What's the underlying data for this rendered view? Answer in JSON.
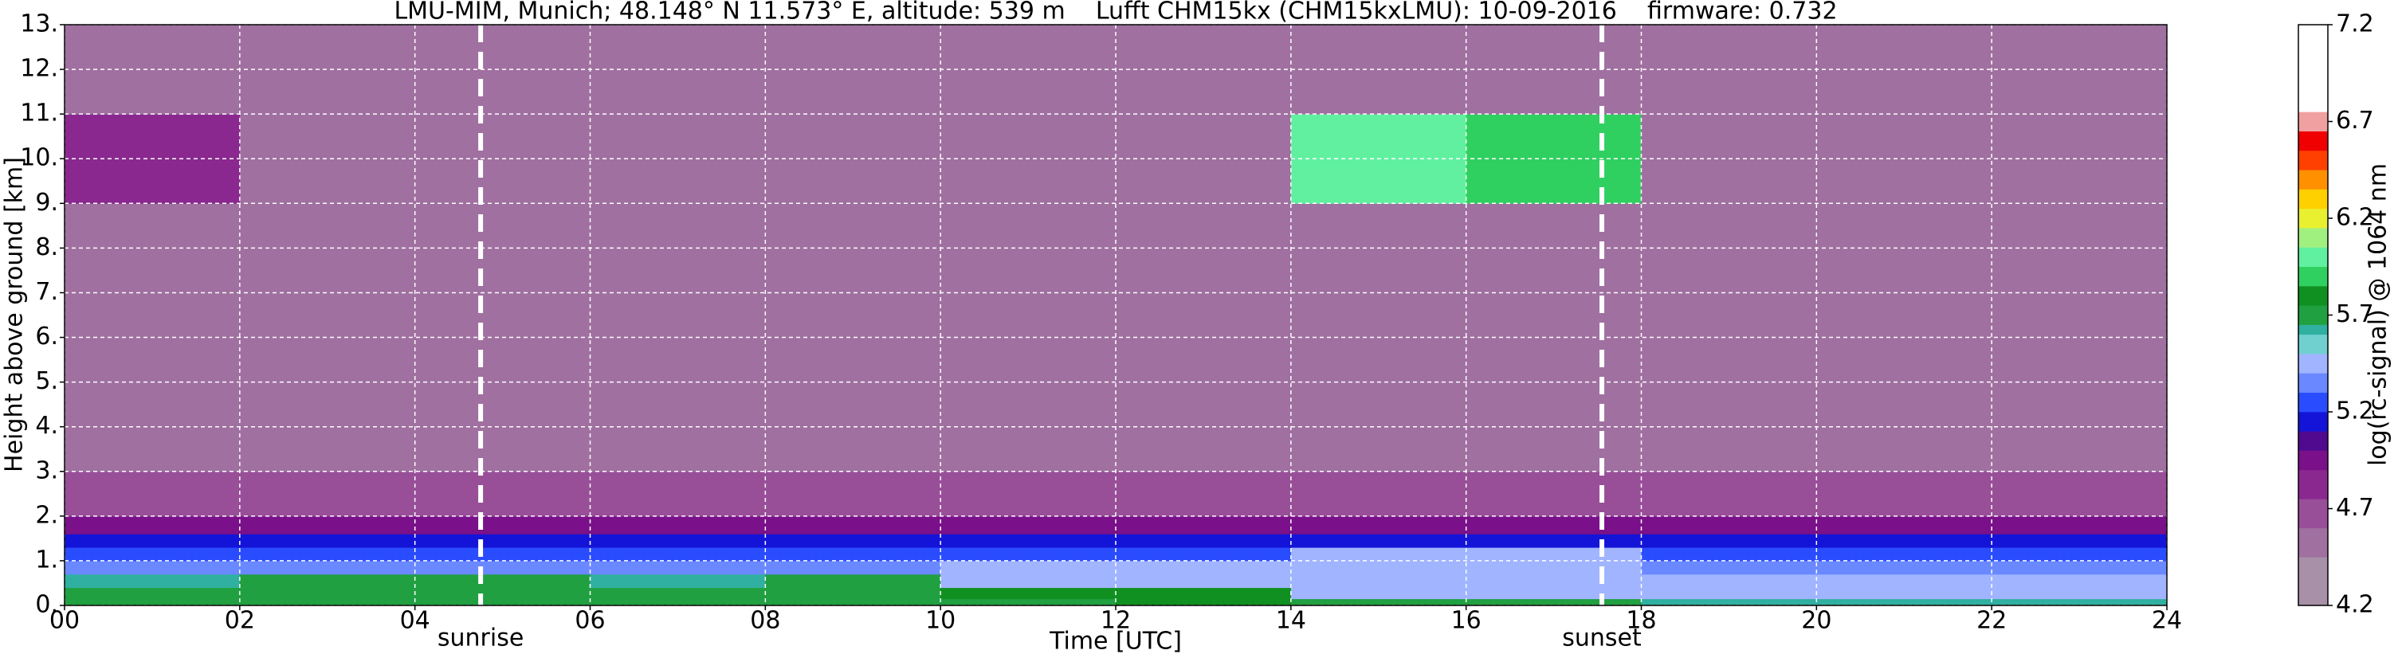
{
  "chart_data": {
    "type": "heatmap",
    "title": "LMU-MIM, Munich; 48.148° N 11.573° E, altitude: 539 m    Lufft CHM15kx (CHM15kxLMU): 10-09-2016    firmware: 0.732",
    "xlabel": "Time [UTC]",
    "ylabel": "Height above ground [km]",
    "colorbar_label": "log(rc-signal) @ 1064 nm",
    "xlim": [
      0,
      24
    ],
    "xticks": [
      {
        "value": 0,
        "label": "00"
      },
      {
        "value": 2,
        "label": "02"
      },
      {
        "value": 4,
        "label": "04"
      },
      {
        "value": 6,
        "label": "06"
      },
      {
        "value": 8,
        "label": "08"
      },
      10,
      12,
      14,
      16,
      18,
      20,
      22,
      24
    ],
    "ylim": [
      0,
      13
    ],
    "yticks": [
      {
        "value": 0,
        "label": "0."
      },
      {
        "value": 1,
        "label": "1."
      },
      {
        "value": 2,
        "label": "2."
      },
      {
        "value": 3,
        "label": "3."
      },
      {
        "value": 4,
        "label": "4."
      },
      {
        "value": 5,
        "label": "5."
      },
      {
        "value": 6,
        "label": "6."
      },
      {
        "value": 7,
        "label": "7."
      },
      {
        "value": 8,
        "label": "8."
      },
      {
        "value": 9,
        "label": "9."
      },
      {
        "value": 10,
        "label": "10."
      },
      {
        "value": 11,
        "label": "11."
      },
      {
        "value": 12,
        "label": "12."
      },
      {
        "value": 13,
        "label": "13."
      }
    ],
    "zlim": [
      4.2,
      7.2
    ],
    "zticks": [
      4.2,
      4.7,
      5.2,
      5.7,
      6.2,
      6.7,
      7.2
    ],
    "grid": true,
    "colormap": {
      "levels": [
        4.2,
        4.45,
        4.6,
        4.75,
        4.9,
        5.0,
        5.1,
        5.2,
        5.3,
        5.4,
        5.5,
        5.6,
        5.65,
        5.75,
        5.85,
        5.95,
        6.05,
        6.15,
        6.25,
        6.35,
        6.45,
        6.55,
        6.65,
        6.75,
        7.2
      ],
      "colors": [
        "#a890a8",
        "#a070a0",
        "#984f98",
        "#8a2890",
        "#7a108a",
        "#500a90",
        "#1414d8",
        "#2a4cff",
        "#6a88ff",
        "#a0b4ff",
        "#70d0d0",
        "#30b0a0",
        "#20a040",
        "#109020",
        "#30d060",
        "#60f0a0",
        "#a0f080",
        "#e8f030",
        "#ffd000",
        "#ff9000",
        "#ff4000",
        "#f00000",
        "#f0a0a0",
        "#ffffff"
      ]
    },
    "x_edges": [
      0,
      2,
      4,
      6,
      8,
      10,
      12,
      14,
      16,
      18,
      20,
      22,
      24
    ],
    "y_edges": [
      0,
      0.15,
      0.4,
      0.7,
      1.0,
      1.3,
      1.6,
      2.0,
      3.0,
      9.0,
      11.0,
      13.0
    ],
    "z": [
      [
        5.7,
        5.7,
        5.7,
        5.7,
        5.7,
        5.7,
        5.75,
        5.7,
        5.7,
        5.6,
        5.6,
        5.6
      ],
      [
        5.7,
        5.7,
        5.65,
        5.65,
        5.65,
        5.75,
        5.75,
        5.45,
        5.45,
        5.4,
        5.4,
        5.4
      ],
      [
        5.6,
        5.7,
        5.7,
        5.6,
        5.7,
        5.45,
        5.45,
        5.45,
        5.45,
        5.45,
        5.45,
        5.45
      ],
      [
        5.35,
        5.35,
        5.35,
        5.35,
        5.35,
        5.45,
        5.45,
        5.45,
        5.45,
        5.35,
        5.35,
        5.35
      ],
      [
        5.25,
        5.25,
        5.25,
        5.25,
        5.25,
        5.25,
        5.25,
        5.4,
        5.4,
        5.25,
        5.25,
        5.25
      ],
      [
        5.15,
        5.15,
        5.15,
        5.15,
        5.15,
        5.15,
        5.15,
        5.15,
        5.15,
        5.15,
        5.15,
        5.15
      ],
      [
        4.95,
        4.95,
        4.95,
        4.95,
        4.95,
        4.95,
        4.95,
        4.95,
        4.95,
        4.95,
        4.95,
        4.95
      ],
      [
        4.7,
        4.7,
        4.7,
        4.7,
        4.7,
        4.7,
        4.7,
        4.7,
        4.7,
        4.7,
        4.7,
        4.7
      ],
      [
        4.5,
        4.5,
        4.5,
        4.5,
        4.5,
        4.5,
        4.5,
        4.5,
        4.5,
        4.5,
        4.5,
        4.5
      ],
      [
        4.8,
        4.5,
        4.5,
        4.5,
        4.5,
        4.5,
        4.5,
        6.0,
        5.9,
        4.5,
        4.5,
        4.5
      ],
      [
        4.5,
        4.5,
        4.5,
        4.5,
        4.5,
        4.5,
        4.5,
        4.5,
        4.5,
        4.5,
        4.5,
        4.5
      ]
    ],
    "annotations": [
      {
        "text": "sunrise",
        "x": 4.75
      },
      {
        "text": "sunset",
        "x": 17.55
      }
    ]
  }
}
